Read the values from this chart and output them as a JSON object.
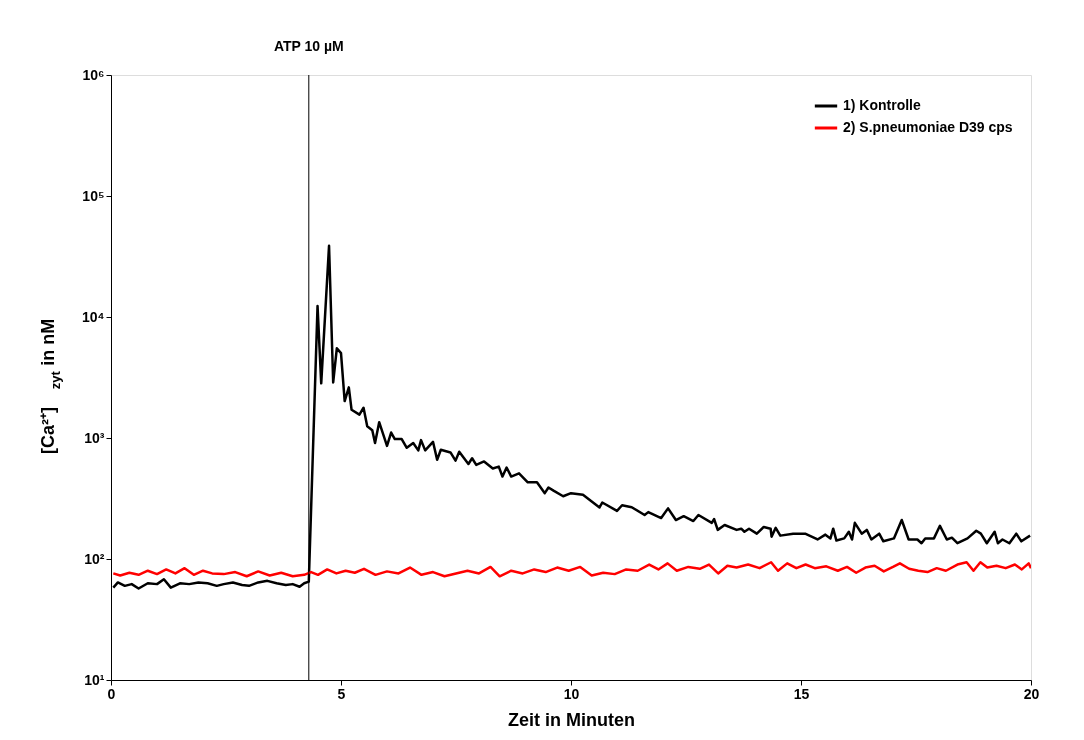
{
  "chart_data": {
    "type": "line",
    "xlabel": "Zeit in Minuten",
    "ylabel": "[Ca²⁺]$_{zyt}$ in nM",
    "log": "y",
    "xlim": [
      0,
      20
    ],
    "xticks": [
      0,
      5,
      10,
      15,
      20
    ],
    "ylim": [
      10,
      1000000
    ],
    "yticks": [
      {
        "value": 10,
        "label": "10¹"
      },
      {
        "value": 100,
        "label": "10²"
      },
      {
        "value": 1000,
        "label": "10³"
      },
      {
        "value": 10000,
        "label": "10⁴"
      },
      {
        "value": 100000,
        "label": "10⁵"
      },
      {
        "value": 1000000,
        "label": "10⁶"
      }
    ],
    "grid": false,
    "legend": "top right",
    "marker": "none",
    "line_style": "solid",
    "ref_lines": [
      {
        "axis": "x",
        "value": 4.3,
        "label": "ATP 10 µM",
        "color": "#000000"
      }
    ],
    "series": [
      {
        "name": "1) Kontrolle",
        "color": "#000000",
        "x": [
          0.05,
          0.15,
          0.3,
          0.45,
          0.6,
          0.8,
          1.0,
          1.15,
          1.3,
          1.5,
          1.7,
          1.9,
          2.1,
          2.3,
          2.45,
          2.65,
          2.85,
          3.0,
          3.2,
          3.4,
          3.6,
          3.8,
          3.95,
          4.1,
          4.2,
          4.3,
          4.49,
          4.57,
          4.74,
          4.83,
          4.91,
          5.0,
          5.08,
          5.17,
          5.23,
          5.4,
          5.49,
          5.57,
          5.68,
          5.74,
          5.83,
          6.0,
          6.09,
          6.17,
          6.32,
          6.43,
          6.57,
          6.68,
          6.74,
          6.83,
          7.0,
          7.09,
          7.17,
          7.38,
          7.49,
          7.57,
          7.77,
          7.85,
          7.94,
          8.11,
          8.3,
          8.43,
          8.51,
          8.6,
          8.7,
          8.87,
          9.06,
          9.26,
          9.43,
          9.51,
          9.62,
          9.83,
          10.0,
          10.26,
          10.62,
          10.68,
          11.0,
          11.11,
          11.32,
          11.6,
          11.68,
          11.96,
          12.11,
          12.28,
          12.45,
          12.66,
          12.77,
          13.06,
          13.11,
          13.19,
          13.34,
          13.6,
          13.7,
          13.77,
          13.87,
          14.04,
          14.19,
          14.34,
          14.36,
          14.45,
          14.55,
          14.83,
          15.09,
          15.36,
          15.53,
          15.64,
          15.7,
          15.77,
          15.94,
          16.04,
          16.11,
          16.17,
          16.32,
          16.43,
          16.53,
          16.7,
          16.79,
          17.02,
          17.19,
          17.34,
          17.53,
          17.62,
          17.7,
          17.89,
          18.02,
          18.17,
          18.28,
          18.4,
          18.62,
          18.81,
          18.91,
          19.04,
          19.21,
          19.28,
          19.38,
          19.53,
          19.68,
          19.79,
          19.98
        ],
        "values": [
          58,
          64,
          60,
          62,
          57,
          63,
          62,
          68,
          58,
          63,
          62,
          64,
          63,
          60,
          62,
          64,
          61,
          60,
          64,
          66,
          63,
          61,
          62,
          59,
          63,
          65,
          12300,
          2830,
          38800,
          2880,
          5520,
          5030,
          2020,
          2620,
          1710,
          1560,
          1780,
          1250,
          1160,
          910,
          1350,
          860,
          1110,
          980,
          980,
          830,
          910,
          790,
          960,
          790,
          930,
          660,
          800,
          760,
          650,
          770,
          610,
          680,
          600,
          640,
          560,
          580,
          480,
          570,
          480,
          510,
          430,
          430,
          350,
          390,
          367,
          330,
          350,
          340,
          267,
          293,
          250,
          278,
          268,
          231,
          244,
          218,
          262,
          210,
          226,
          206,
          231,
          199,
          214,
          174,
          191,
          174,
          178,
          168,
          178,
          162,
          184,
          178,
          153,
          181,
          156,
          162,
          162,
          145,
          159,
          148,
          178,
          142,
          148,
          168,
          145,
          199,
          162,
          174,
          145,
          162,
          140,
          148,
          210,
          145,
          145,
          135,
          148,
          148,
          188,
          145,
          150,
          135,
          148,
          171,
          162,
          135,
          168,
          135,
          145,
          135,
          162,
          140,
          156
        ]
      },
      {
        "name": "2) S.pneumoniae D39 cps",
        "color": "#ff0000",
        "x": [
          0.05,
          0.2,
          0.4,
          0.6,
          0.8,
          1.0,
          1.2,
          1.4,
          1.6,
          1.8,
          2.0,
          2.2,
          2.45,
          2.7,
          2.95,
          3.2,
          3.45,
          3.7,
          3.95,
          4.2,
          4.35,
          4.5,
          4.7,
          4.9,
          5.1,
          5.3,
          5.5,
          5.75,
          6.0,
          6.25,
          6.5,
          6.75,
          7.0,
          7.25,
          7.5,
          7.75,
          8.0,
          8.25,
          8.45,
          8.7,
          8.95,
          9.2,
          9.45,
          9.7,
          9.95,
          10.2,
          10.45,
          10.7,
          10.95,
          11.2,
          11.45,
          11.7,
          11.9,
          12.1,
          12.3,
          12.55,
          12.8,
          13.0,
          13.2,
          13.4,
          13.6,
          13.85,
          14.1,
          14.35,
          14.5,
          14.7,
          14.9,
          15.1,
          15.3,
          15.55,
          15.8,
          16.0,
          16.2,
          16.4,
          16.6,
          16.8,
          17.0,
          17.15,
          17.35,
          17.55,
          17.75,
          17.95,
          18.15,
          18.4,
          18.6,
          18.75,
          18.9,
          19.05,
          19.25,
          19.45,
          19.65,
          19.8,
          19.95,
          20.0
        ],
        "values": [
          76,
          73,
          77,
          74,
          80,
          75,
          82,
          76,
          84,
          74,
          80,
          76,
          75,
          78,
          72,
          79,
          73,
          77,
          72,
          74,
          78,
          74,
          82,
          76,
          80,
          77,
          83,
          74,
          79,
          76,
          85,
          74,
          78,
          72,
          76,
          80,
          76,
          86,
          72,
          80,
          76,
          82,
          78,
          85,
          80,
          86,
          73,
          77,
          75,
          82,
          80,
          90,
          82,
          92,
          80,
          86,
          83,
          90,
          76,
          88,
          85,
          90,
          84,
          94,
          80,
          92,
          84,
          90,
          84,
          87,
          80,
          86,
          77,
          85,
          88,
          79,
          86,
          92,
          83,
          80,
          78,
          84,
          80,
          90,
          94,
          80,
          94,
          85,
          88,
          84,
          90,
          82,
          92,
          84
        ]
      }
    ]
  }
}
